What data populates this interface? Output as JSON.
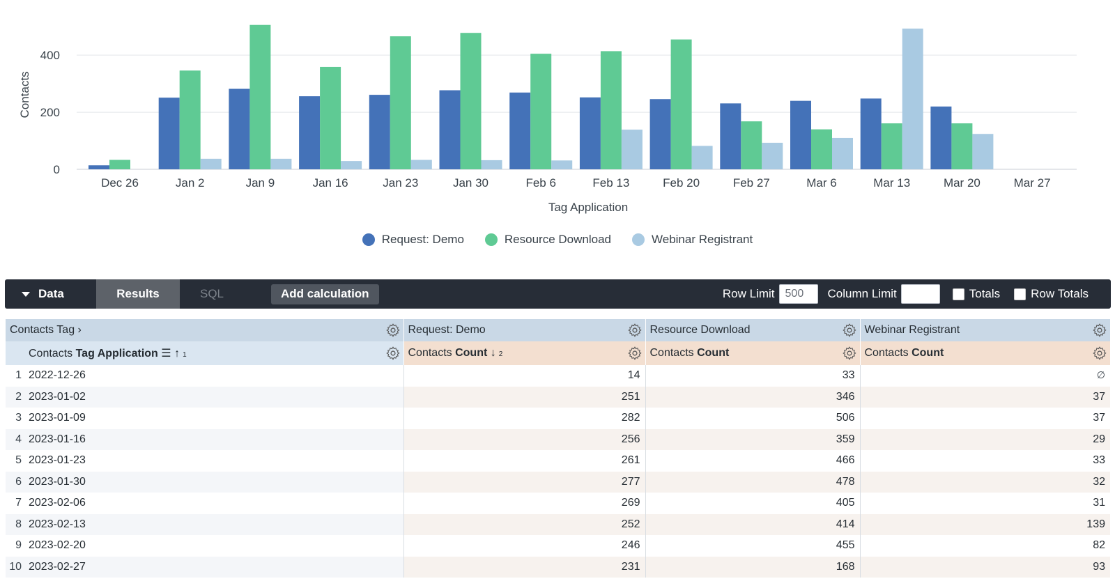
{
  "chart_data": {
    "type": "bar",
    "categories": [
      "Dec 26",
      "Jan 2",
      "Jan 9",
      "Jan 16",
      "Jan 23",
      "Jan 30",
      "Feb 6",
      "Feb 13",
      "Feb 20",
      "Feb 27",
      "Mar 6",
      "Mar 13",
      "Mar 20",
      "Mar 27"
    ],
    "series": [
      {
        "name": "Request: Demo",
        "color": "#4472b8",
        "values": [
          14,
          251,
          282,
          256,
          261,
          277,
          269,
          252,
          246,
          231,
          240,
          248,
          220,
          null
        ]
      },
      {
        "name": "Resource Download",
        "color": "#5fca94",
        "values": [
          33,
          346,
          506,
          359,
          466,
          478,
          405,
          414,
          455,
          168,
          140,
          161,
          161,
          null
        ]
      },
      {
        "name": "Webinar Registrant",
        "color": "#a9cae2",
        "values": [
          null,
          37,
          37,
          29,
          33,
          32,
          31,
          139,
          82,
          93,
          110,
          493,
          124,
          null
        ]
      }
    ],
    "yticks": [
      "0",
      "200",
      "400"
    ],
    "ylim": [
      0,
      520
    ],
    "xlabel": "Tag Application",
    "ylabel": "Contacts",
    "legend_position": "bottom",
    "grid": true
  },
  "toolbar": {
    "data_label": "Data",
    "results_label": "Results",
    "sql_label": "SQL",
    "add_calculation_label": "Add calculation",
    "row_limit_label": "Row Limit",
    "row_limit_value": "500",
    "column_limit_label": "Column Limit",
    "column_limit_value": "",
    "totals_label": "Totals",
    "row_totals_label": "Row Totals"
  },
  "table": {
    "pivot_header": {
      "dimension_group_label": "Contacts Tag",
      "pivot_values": [
        "Request: Demo",
        "Resource Download",
        "Webinar Registrant"
      ]
    },
    "columns": {
      "dimension_view": "Contacts",
      "dimension_field": "Tag Application",
      "dimension_sort_order": "1",
      "measure_view": "Contacts",
      "measure_field": "Count",
      "measure_sort_order": "2"
    },
    "null_symbol": "∅",
    "rows": [
      {
        "index": "1",
        "date": "2022-12-26",
        "values": [
          "14",
          "33",
          null
        ]
      },
      {
        "index": "2",
        "date": "2023-01-02",
        "values": [
          "251",
          "346",
          "37"
        ]
      },
      {
        "index": "3",
        "date": "2023-01-09",
        "values": [
          "282",
          "506",
          "37"
        ]
      },
      {
        "index": "4",
        "date": "2023-01-16",
        "values": [
          "256",
          "359",
          "29"
        ]
      },
      {
        "index": "5",
        "date": "2023-01-23",
        "values": [
          "261",
          "466",
          "33"
        ]
      },
      {
        "index": "6",
        "date": "2023-01-30",
        "values": [
          "277",
          "478",
          "32"
        ]
      },
      {
        "index": "7",
        "date": "2023-02-06",
        "values": [
          "269",
          "405",
          "31"
        ]
      },
      {
        "index": "8",
        "date": "2023-02-13",
        "values": [
          "252",
          "414",
          "139"
        ]
      },
      {
        "index": "9",
        "date": "2023-02-20",
        "values": [
          "246",
          "455",
          "82"
        ]
      },
      {
        "index": "10",
        "date": "2023-02-27",
        "values": [
          "231",
          "168",
          "93"
        ]
      }
    ]
  }
}
